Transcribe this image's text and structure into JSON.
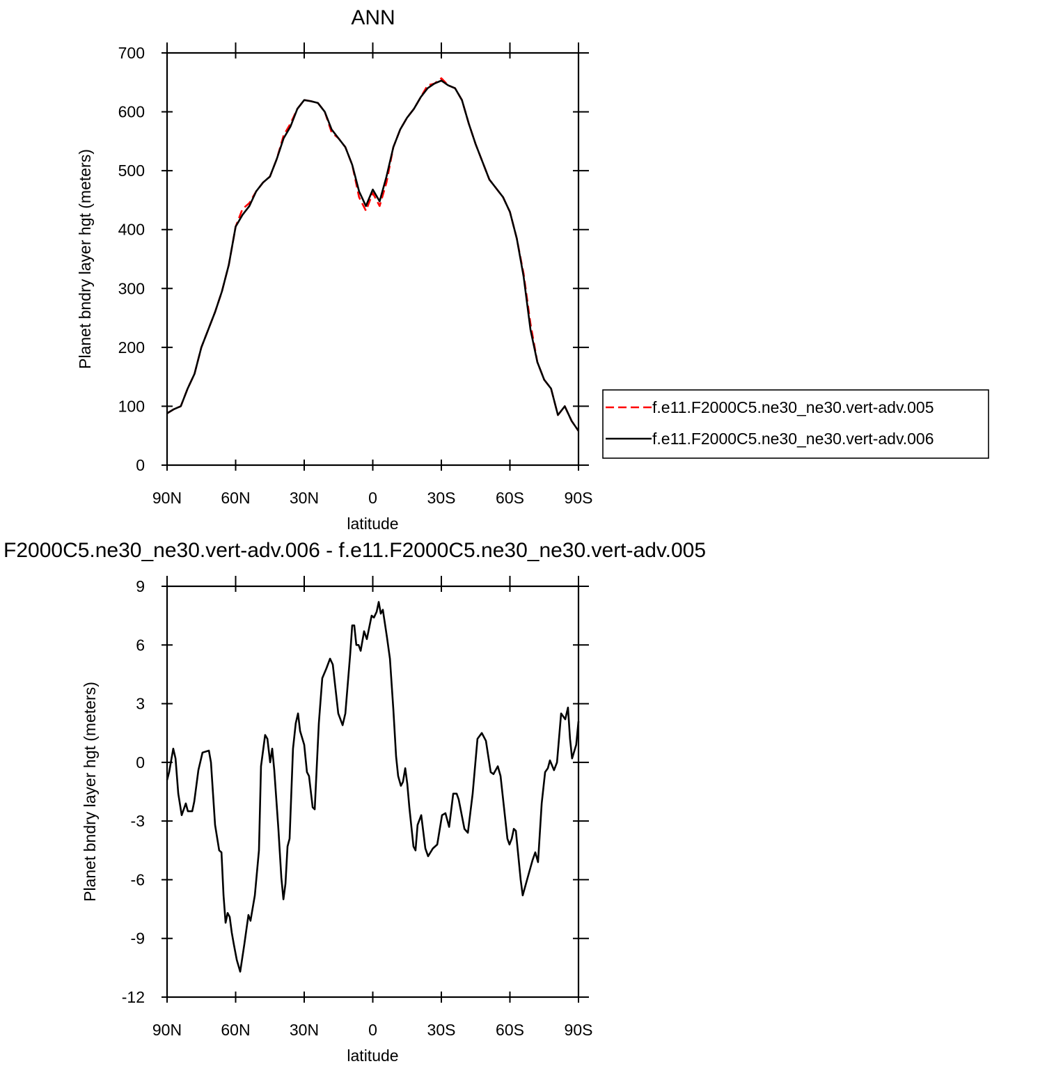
{
  "chart_data": [
    {
      "type": "line",
      "title": "ANN",
      "xlabel": "latitude",
      "ylabel": "Planet bndry layer hgt (meters)",
      "x": [
        90,
        87,
        84,
        81,
        78,
        75,
        72,
        69,
        66,
        63,
        60,
        57,
        54,
        51,
        48,
        45,
        42,
        39,
        36,
        33,
        30,
        27,
        24,
        21,
        18,
        15,
        12,
        9,
        6,
        3,
        0,
        -3,
        -6,
        -9,
        -12,
        -15,
        -18,
        -21,
        -24,
        -27,
        -30,
        -33,
        -36,
        -39,
        -42,
        -45,
        -48,
        -51,
        -54,
        -57,
        -60,
        -63,
        -66,
        -69,
        -72,
        -75,
        -78,
        -81,
        -84,
        -87,
        -90
      ],
      "series": [
        {
          "name": "f.e11.F2000C5.ne30_ne30.vert-adv.005",
          "color": "#ff0000",
          "linestyle": "dashed",
          "values": [
            88,
            95,
            100,
            130,
            155,
            200,
            230,
            260,
            295,
            340,
            405,
            435,
            445,
            465,
            480,
            490,
            520,
            560,
            580,
            605,
            620,
            618,
            615,
            600,
            565,
            555,
            540,
            510,
            455,
            432,
            462,
            440,
            480,
            540,
            570,
            590,
            605,
            625,
            645,
            648,
            657,
            645,
            640,
            620,
            580,
            545,
            515,
            485,
            470,
            455,
            430,
            385,
            325,
            240,
            175,
            145,
            130,
            85,
            100,
            75,
            58
          ]
        },
        {
          "name": "f.e11.F2000C5.ne30_ne30.vert-adv.006",
          "color": "#000000",
          "linestyle": "solid",
          "values": [
            88,
            95,
            100,
            130,
            155,
            200,
            230,
            260,
            295,
            340,
            405,
            425,
            440,
            465,
            480,
            490,
            520,
            555,
            575,
            605,
            620,
            618,
            615,
            600,
            570,
            555,
            540,
            510,
            465,
            440,
            468,
            448,
            490,
            540,
            570,
            590,
            605,
            625,
            640,
            648,
            653,
            645,
            640,
            620,
            580,
            545,
            515,
            485,
            470,
            455,
            430,
            385,
            320,
            230,
            175,
            145,
            130,
            85,
            100,
            75,
            58
          ]
        }
      ],
      "xlim": [
        90,
        -90
      ],
      "xticks": [
        {
          "value": 90,
          "label": "90N"
        },
        {
          "value": 60,
          "label": "60N"
        },
        {
          "value": 30,
          "label": "30N"
        },
        0,
        {
          "value": -30,
          "label": "30S"
        },
        {
          "value": -60,
          "label": "60S"
        },
        {
          "value": -90,
          "label": "90S"
        }
      ],
      "ylim": [
        0,
        700
      ],
      "yticks": [
        0,
        100,
        200,
        300,
        400,
        500,
        600,
        700
      ],
      "legend": "right"
    },
    {
      "type": "line",
      "title": "F2000C5.ne30_ne30.vert-adv.006 - f.e11.F2000C5.ne30_ne30.vert-adv.005",
      "xlabel": "latitude",
      "ylabel": "Planet bndry layer hgt (meters)",
      "x": [
        90,
        89.1,
        87.3,
        86.3,
        85.1,
        83.6,
        81.8,
        80.9,
        79.0,
        78.1,
        76.3,
        74.5,
        71.7,
        70.8,
        69.0,
        67.2,
        66.2,
        65.3,
        64.4,
        63.5,
        62.6,
        61.7,
        60.8,
        59.5,
        58.0,
        56.2,
        54.4,
        53.5,
        51.6,
        49.8,
        48.9,
        47.1,
        46.1,
        44.9,
        44.0,
        43.1,
        41.3,
        40.0,
        39.1,
        38.2,
        37.3,
        36.4,
        34.9,
        33.7,
        32.7,
        31.8,
        30.0,
        28.8,
        27.9,
        26.3,
        25.4,
        23.6,
        22.1,
        20.3,
        18.7,
        17.5,
        15.1,
        13.2,
        12.0,
        9.9,
        9.0,
        8.1,
        7.2,
        6.2,
        5.3,
        3.8,
        2.6,
        0.5,
        -0.5,
        -1.7,
        -2.6,
        -3.5,
        -4.4,
        -6.2,
        -7.5,
        -9.0,
        -10.2,
        -11.1,
        -12.3,
        -13.2,
        -14.2,
        -15.1,
        -16.0,
        -17.8,
        -18.7,
        -19.6,
        -21.2,
        -23.0,
        -24.2,
        -26.3,
        -28.2,
        -30.3,
        -31.8,
        -33.4,
        -35.2,
        -36.7,
        -37.6,
        -40.1,
        -41.6,
        -43.7,
        -45.8,
        -47.7,
        -49.5,
        -51.6,
        -52.8,
        -54.7,
        -55.9,
        -58.9,
        -59.8,
        -60.8,
        -61.7,
        -62.6,
        -64.7,
        -65.6,
        -67.5,
        -69.9,
        -71.1,
        -72.3,
        -73.9,
        -75.4,
        -76.6,
        -77.5,
        -79.3,
        -80.6,
        -82.4,
        -84.2,
        -85.4,
        -86.3,
        -87.2,
        -89.0,
        -90
      ],
      "values": [
        -0.9,
        -0.5,
        0.7,
        0.2,
        -1.6,
        -2.7,
        -2.1,
        -2.5,
        -2.5,
        -2,
        -0.4,
        0.5,
        0.6,
        0,
        -3.2,
        -4.5,
        -4.6,
        -6.8,
        -8.2,
        -7.7,
        -7.9,
        -8.7,
        -9.3,
        -10.1,
        -10.7,
        -9.3,
        -7.8,
        -8.1,
        -6.8,
        -4.5,
        -0.2,
        1.4,
        1.2,
        0,
        0.7,
        -0.4,
        -3.4,
        -5.9,
        -7,
        -6.2,
        -4.3,
        -3.9,
        0.7,
        2,
        2.5,
        1.6,
        0.9,
        -0.5,
        -0.7,
        -2.3,
        -2.4,
        2,
        4.3,
        4.8,
        5.3,
        5,
        2.5,
        1.9,
        2.5,
        5.5,
        7,
        7,
        6,
        6,
        5.7,
        6.7,
        6.3,
        7.5,
        7.4,
        7.7,
        8.2,
        7.6,
        7.8,
        6.4,
        5.3,
        2.7,
        0.3,
        -0.7,
        -1.2,
        -1,
        -0.3,
        -1.1,
        -2.3,
        -4.3,
        -4.5,
        -3.2,
        -2.7,
        -4.4,
        -4.8,
        -4.4,
        -4.2,
        -2.7,
        -2.6,
        -3.3,
        -1.6,
        -1.6,
        -1.9,
        -3.4,
        -3.6,
        -1.6,
        1.2,
        1.5,
        1.1,
        -0.5,
        -0.6,
        -0.2,
        -0.7,
        -3.9,
        -4.2,
        -3.9,
        -3.4,
        -3.5,
        -6,
        -6.8,
        -6,
        -5,
        -4.6,
        -5.1,
        -2.1,
        -0.5,
        -0.3,
        0.1,
        -0.4,
        0,
        2.5,
        2.2,
        2.8,
        1.2,
        0.2,
        0.9,
        2.1
      ],
      "color": "#000000",
      "xlim": [
        90,
        -90
      ],
      "xticks": [
        {
          "value": 90,
          "label": "90N"
        },
        {
          "value": 60,
          "label": "60N"
        },
        {
          "value": 30,
          "label": "30N"
        },
        0,
        {
          "value": -30,
          "label": "30S"
        },
        {
          "value": -60,
          "label": "60S"
        },
        {
          "value": -90,
          "label": "90S"
        }
      ],
      "ylim": [
        -12,
        9
      ],
      "yticks": [
        -12,
        -9,
        -6,
        -3,
        0,
        3,
        6,
        9
      ]
    }
  ]
}
